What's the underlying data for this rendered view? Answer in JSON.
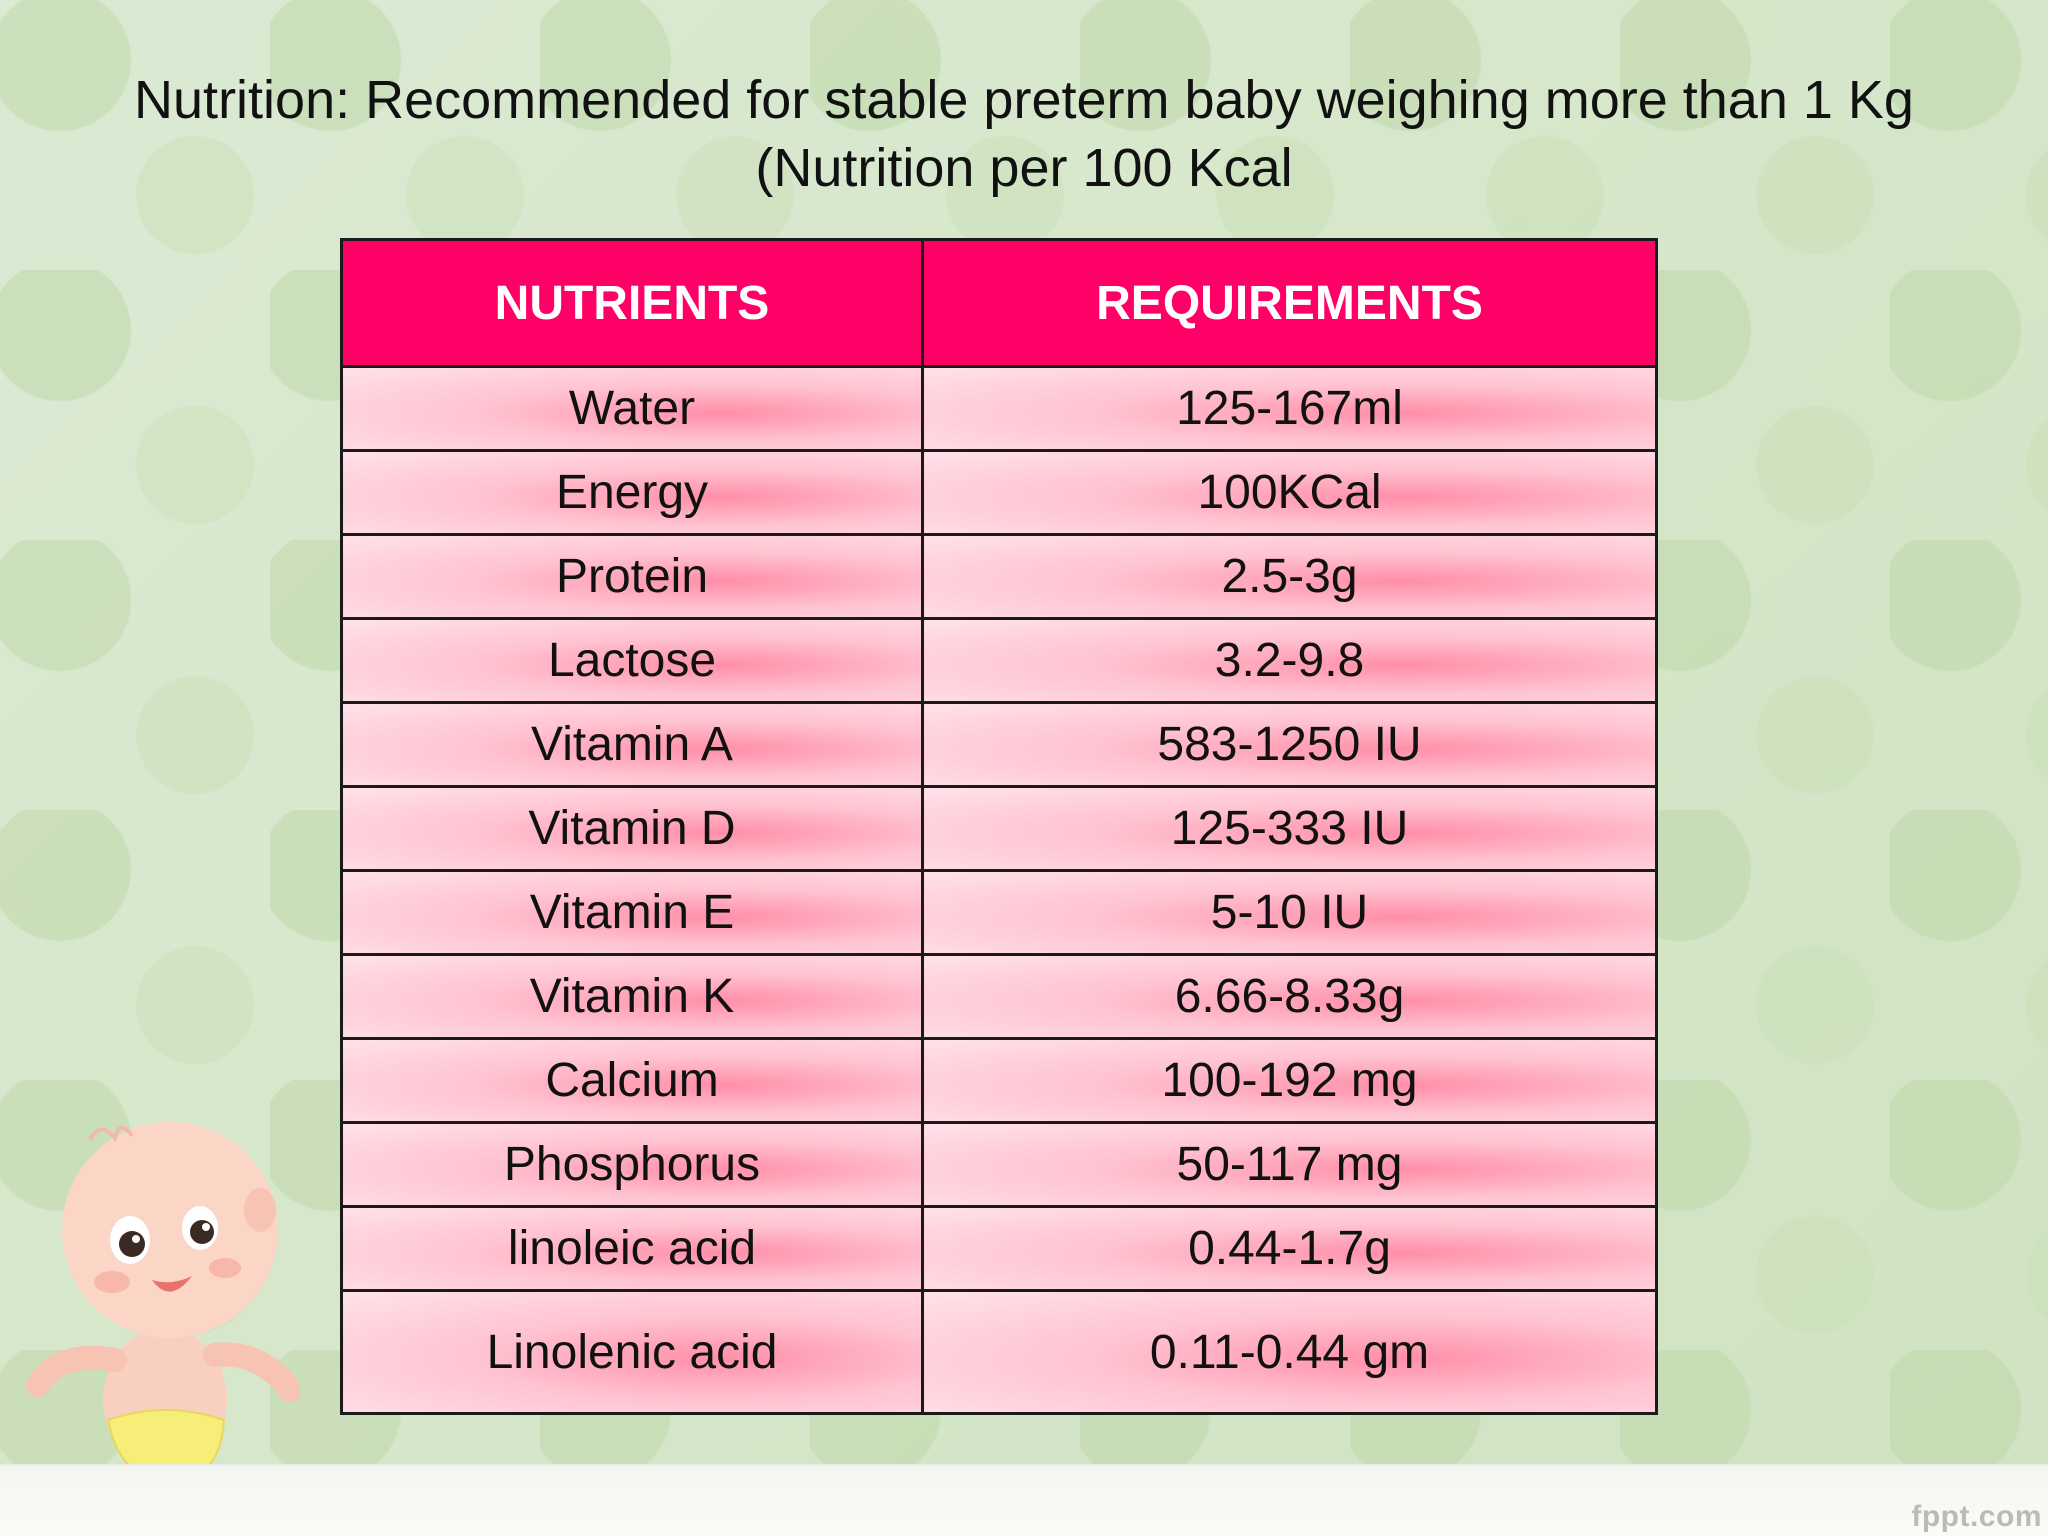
{
  "title": "Nutrition: Recommended for stable preterm baby weighing more than 1 Kg (Nutrition per 100 Kcal",
  "table": {
    "headers": [
      "NUTRIENTS",
      "REQUIREMENTS"
    ],
    "rows": [
      {
        "nutrient": "Water",
        "requirement": "125-167ml"
      },
      {
        "nutrient": "Energy",
        "requirement": "100KCal"
      },
      {
        "nutrient": "Protein",
        "requirement": "2.5-3g"
      },
      {
        "nutrient": "Lactose",
        "requirement": "3.2-9.8"
      },
      {
        "nutrient": "Vitamin A",
        "requirement": "583-1250 IU"
      },
      {
        "nutrient": "Vitamin D",
        "requirement": "125-333 IU"
      },
      {
        "nutrient": "Vitamin E",
        "requirement": "5-10 IU"
      },
      {
        "nutrient": "Vitamin K",
        "requirement": "6.66-8.33g"
      },
      {
        "nutrient": "Calcium",
        "requirement": "100-192 mg"
      },
      {
        "nutrient": "Phosphorus",
        "requirement": "50-117 mg"
      },
      {
        "nutrient": "linoleic acid",
        "requirement": "0.44-1.7g"
      },
      {
        "nutrient": "Linolenic acid",
        "requirement": "0.11-0.44 gm"
      }
    ]
  },
  "footer": {
    "brand": "fppt.com"
  },
  "colors": {
    "header_bg": "#ff0066",
    "cell_pink": "#ffc3d1",
    "background": "#d9e8cf"
  }
}
